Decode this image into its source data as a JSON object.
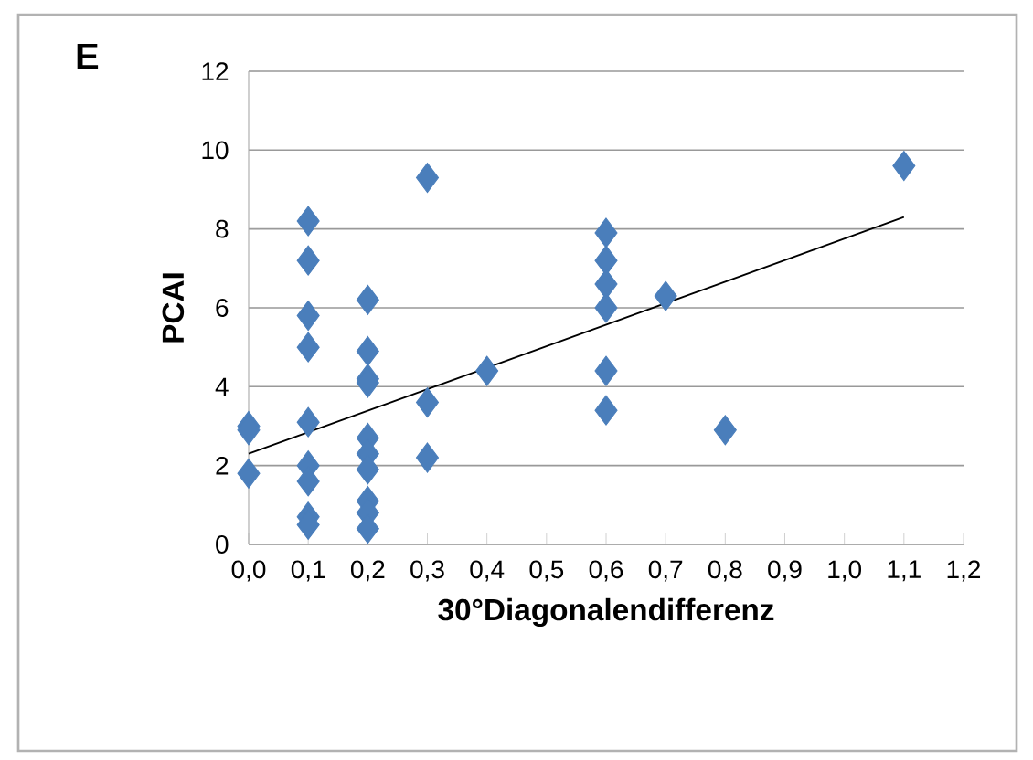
{
  "chart_data": {
    "type": "scatter",
    "title": "E",
    "xlabel": "30°Diagonalendifferenz",
    "ylabel": "PCAI",
    "xlim": [
      0,
      1.2
    ],
    "ylim": [
      0,
      12
    ],
    "xticks": [
      {
        "value": 0,
        "label": "0,0"
      },
      {
        "value": 0.1,
        "label": "0,1"
      },
      {
        "value": 0.2,
        "label": "0,2"
      },
      {
        "value": 0.3,
        "label": "0,3"
      },
      {
        "value": 0.4,
        "label": "0,4"
      },
      {
        "value": 0.5,
        "label": "0,5"
      },
      {
        "value": 0.6,
        "label": "0,6"
      },
      {
        "value": 0.7,
        "label": "0,7"
      },
      {
        "value": 0.8,
        "label": "0,8"
      },
      {
        "value": 0.9,
        "label": "0,9"
      },
      {
        "value": 1.0,
        "label": "1,0"
      },
      {
        "value": 1.1,
        "label": "1,1"
      },
      {
        "value": 1.2,
        "label": "1,2"
      }
    ],
    "yticks": [
      0,
      2,
      4,
      6,
      8,
      10,
      12
    ],
    "grid": "y",
    "marker": "diamond",
    "series": [
      {
        "color": "#4a7ebb",
        "x": [
          0,
          0,
          0,
          0.1,
          0.1,
          0.1,
          0.1,
          0.1,
          0.1,
          0.1,
          0.1,
          0.1,
          0.2,
          0.2,
          0.2,
          0.2,
          0.2,
          0.2,
          0.2,
          0.2,
          0.2,
          0.2,
          0.3,
          0.3,
          0.3,
          0.4,
          0.6,
          0.6,
          0.6,
          0.6,
          0.6,
          0.6,
          0.7,
          0.8,
          1.1
        ],
        "values": [
          3.0,
          2.9,
          1.8,
          8.2,
          7.2,
          5.8,
          5.0,
          3.1,
          2.0,
          1.6,
          0.7,
          0.5,
          6.2,
          4.9,
          4.2,
          4.1,
          2.7,
          2.3,
          1.9,
          1.1,
          0.8,
          0.4,
          9.3,
          3.6,
          2.2,
          4.4,
          7.9,
          7.2,
          6.6,
          6.0,
          4.4,
          3.4,
          6.3,
          2.9,
          9.6
        ]
      },
      {
        "type": "line",
        "color": "#000000",
        "marker": "none",
        "x": [
          0,
          1.1
        ],
        "values": [
          2.3,
          8.3
        ]
      }
    ]
  }
}
